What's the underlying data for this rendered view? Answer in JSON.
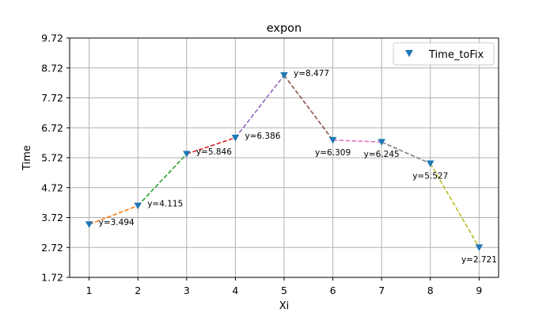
{
  "chart_data": {
    "type": "line",
    "title": "expon",
    "xlabel": "Xi",
    "ylabel": "Time",
    "x": [
      1,
      2,
      3,
      4,
      5,
      6,
      7,
      8,
      9
    ],
    "series": [
      {
        "name": "Time_toFix",
        "marker": "triangle-down",
        "marker_color": "#1f77b4",
        "values": [
          3.494,
          4.115,
          5.846,
          6.386,
          8.477,
          6.309,
          6.245,
          5.527,
          2.721
        ]
      }
    ],
    "data_labels": [
      "y=3.494",
      "y=4.115",
      "y=5.846",
      "y=6.386",
      "y=8.477",
      "y=6.309",
      "y=6.245",
      "y=5.527",
      "y=2.721"
    ],
    "segment_colors": [
      "#ff7f0e",
      "#2ca02c",
      "#d62728",
      "#9467bd",
      "#8c564b",
      "#e377c2",
      "#7f7f7f",
      "#bcbd22"
    ],
    "segment_style": "dashed",
    "xticks": [
      "1",
      "2",
      "3",
      "4",
      "5",
      "6",
      "7",
      "8",
      "9"
    ],
    "yticks": [
      "1.72",
      "2.72",
      "3.72",
      "4.72",
      "5.72",
      "6.72",
      "7.72",
      "8.72",
      "9.72"
    ],
    "xlim": [
      0.6,
      9.4
    ],
    "ylim": [
      1.72,
      9.72
    ],
    "grid": true,
    "legend_position": "top-right"
  }
}
